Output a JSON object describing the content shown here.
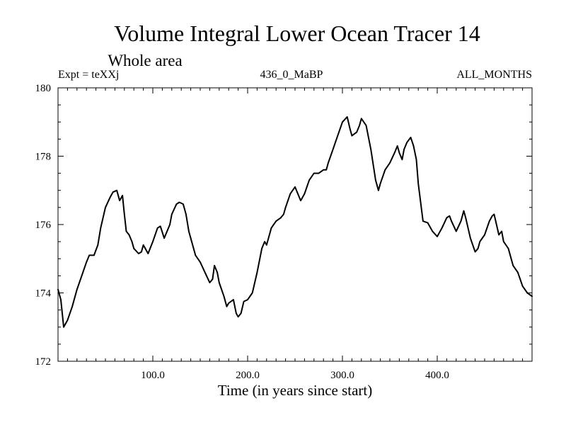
{
  "chart_data": {
    "type": "line",
    "title": "Volume Integral Lower Ocean Tracer 14",
    "subtitle": "Whole area",
    "expt_label": "Expt = teXXj",
    "run_label": "436_0_MaBP",
    "months_label": "ALL_MONTHS",
    "xlabel": "Time (in years since start)",
    "ylabel": "",
    "xlim": [
      0,
      500
    ],
    "ylim": [
      172,
      180
    ],
    "x_ticks": [
      100,
      200,
      300,
      400
    ],
    "x_tick_labels": [
      "100.0",
      "200.0",
      "300.0",
      "400.0"
    ],
    "y_ticks": [
      172,
      174,
      176,
      178,
      180
    ],
    "y_tick_labels": [
      "172",
      "174",
      "176",
      "178",
      "180"
    ],
    "grid": false,
    "line_color": "#000000",
    "series": [
      {
        "name": "Volume Integral Lower Ocean Tracer 14",
        "x": [
          0,
          3,
          6,
          8,
          10,
          15,
          20,
          25,
          30,
          33,
          38,
          42,
          45,
          50,
          55,
          58,
          62,
          65,
          68,
          70,
          72,
          75,
          78,
          80,
          85,
          88,
          90,
          95,
          100,
          105,
          108,
          112,
          115,
          118,
          120,
          125,
          128,
          132,
          135,
          138,
          140,
          145,
          150,
          155,
          160,
          163,
          165,
          168,
          170,
          175,
          178,
          180,
          185,
          188,
          190,
          193,
          196,
          200,
          205,
          210,
          215,
          218,
          220,
          225,
          230,
          235,
          238,
          240,
          245,
          250,
          253,
          256,
          260,
          265,
          270,
          275,
          280,
          283,
          285,
          290,
          295,
          300,
          305,
          308,
          310,
          315,
          318,
          320,
          325,
          330,
          335,
          338,
          340,
          345,
          350,
          355,
          358,
          360,
          363,
          365,
          368,
          372,
          375,
          378,
          380,
          385,
          390,
          395,
          400,
          405,
          410,
          413,
          415,
          420,
          425,
          428,
          430,
          435,
          440,
          443,
          445,
          450,
          455,
          458,
          460,
          465,
          468,
          470,
          475,
          480,
          485,
          490,
          495,
          500
        ],
        "y": [
          174.1,
          173.8,
          173.0,
          173.1,
          173.2,
          173.6,
          174.1,
          174.5,
          174.9,
          175.1,
          175.1,
          175.4,
          175.9,
          176.5,
          176.8,
          176.95,
          177.0,
          176.7,
          176.85,
          176.3,
          175.8,
          175.7,
          175.5,
          175.3,
          175.15,
          175.2,
          175.4,
          175.15,
          175.5,
          175.9,
          175.95,
          175.6,
          175.8,
          176.0,
          176.3,
          176.6,
          176.65,
          176.6,
          176.3,
          175.8,
          175.6,
          175.1,
          174.9,
          174.6,
          174.3,
          174.4,
          174.8,
          174.6,
          174.3,
          173.9,
          173.6,
          173.7,
          173.8,
          173.4,
          173.3,
          173.4,
          173.75,
          173.8,
          174.0,
          174.6,
          175.3,
          175.5,
          175.4,
          175.9,
          176.1,
          176.2,
          176.3,
          176.5,
          176.9,
          177.1,
          176.9,
          176.7,
          176.9,
          177.3,
          177.5,
          177.5,
          177.6,
          177.6,
          177.8,
          178.2,
          178.6,
          179.0,
          179.15,
          178.8,
          178.6,
          178.7,
          178.9,
          179.1,
          178.9,
          178.2,
          177.3,
          177.0,
          177.2,
          177.6,
          177.8,
          178.1,
          178.3,
          178.1,
          177.9,
          178.2,
          178.4,
          178.55,
          178.3,
          177.9,
          177.2,
          176.1,
          176.05,
          175.8,
          175.65,
          175.9,
          176.2,
          176.25,
          176.1,
          175.8,
          176.1,
          176.4,
          176.2,
          175.6,
          175.2,
          175.3,
          175.5,
          175.7,
          176.1,
          176.25,
          176.3,
          175.7,
          175.8,
          175.5,
          175.3,
          174.8,
          174.6,
          174.2,
          174.0,
          173.9
        ]
      }
    ]
  }
}
